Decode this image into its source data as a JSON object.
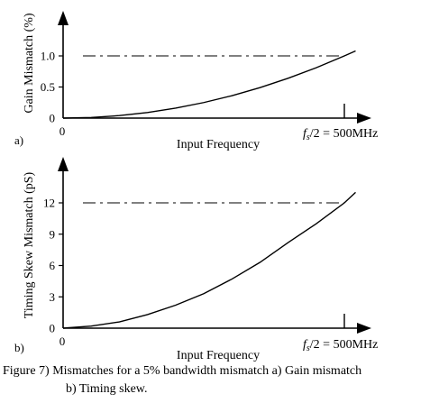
{
  "chart_data": [
    {
      "type": "line",
      "panel_label": "a)",
      "ylabel": "Gain Mismatch (%)",
      "xlabel": "Input Frequency",
      "x_origin_label": "0",
      "x_end_label_symbol": "f",
      "x_end_label_sub": "s",
      "x_end_label_rest": "/2 = 500MHz",
      "x_range_mhz": [
        0,
        500
      ],
      "ylim": [
        0,
        1.0
      ],
      "y_ticks": [
        "0",
        "0.5",
        "1.0"
      ],
      "y_tick_values": [
        0,
        0.5,
        1.0
      ],
      "reference_line": {
        "value": 1.0,
        "style": "dash-dot"
      },
      "series": [
        {
          "x": [
            0,
            50,
            100,
            150,
            200,
            250,
            300,
            350,
            400,
            450,
            500,
            520
          ],
          "y": [
            0,
            0.01,
            0.04,
            0.09,
            0.16,
            0.25,
            0.36,
            0.49,
            0.64,
            0.81,
            1.0,
            1.08
          ]
        }
      ]
    },
    {
      "type": "line",
      "panel_label": "b)",
      "ylabel": "Timing Skew Mismatch (pS)",
      "xlabel": "Input Frequency",
      "x_origin_label": "0",
      "x_end_label_symbol": "f",
      "x_end_label_sub": "s",
      "x_end_label_rest": "/2 = 500MHz",
      "x_range_mhz": [
        0,
        500
      ],
      "ylim": [
        0,
        12
      ],
      "y_ticks": [
        "0",
        "3",
        "6",
        "9",
        "12"
      ],
      "y_tick_values": [
        0,
        3,
        6,
        9,
        12
      ],
      "reference_line": {
        "value": 12,
        "style": "dash-dot"
      },
      "series": [
        {
          "x": [
            0,
            50,
            100,
            150,
            200,
            250,
            300,
            350,
            400,
            450,
            500,
            520
          ],
          "y": [
            0,
            0.2,
            0.6,
            1.3,
            2.2,
            3.3,
            4.7,
            6.3,
            8.2,
            10.0,
            12.0,
            13.0
          ]
        }
      ]
    }
  ],
  "caption": {
    "line1": "Figure 7) Mismatches for a 5% bandwidth mismatch a) Gain mismatch",
    "line2": "b) Timing skew."
  }
}
